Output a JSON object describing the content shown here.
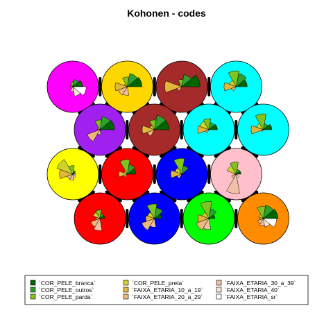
{
  "chart_data": {
    "type": "som-codes-segments",
    "title": "Kohonen - codes",
    "grid": {
      "xdim": 4,
      "ydim": 4,
      "topology": "hexagonal"
    },
    "variables": [
      {
        "name": "`COR_PELE_branca`",
        "color": "#006400"
      },
      {
        "name": "`COR_PELE_outros`",
        "color": "#2EA02E"
      },
      {
        "name": "`COR_PELE_parda`",
        "color": "#7FC41F"
      },
      {
        "name": "`COR_PELE_preta`",
        "color": "#CFD22B"
      },
      {
        "name": "`FAIXA_ETARIA_10_a_19`",
        "color": "#E2B63A"
      },
      {
        "name": "`FAIXA_ETARIA_20_a_29`",
        "color": "#EDB97A"
      },
      {
        "name": "`FAIXA_ETARIA_30_a_39`",
        "color": "#F1C1A6"
      },
      {
        "name": "`FAIXA_ETARIA_40`",
        "color": "#F7E2D7"
      },
      {
        "name": "`FAIXA_ETARIA_sr`",
        "color": "#FFFFFF"
      }
    ],
    "units": [
      {
        "row": 1,
        "col": 1,
        "bg": "#FF00FF",
        "codes": [
          0.4,
          0.3,
          0.2,
          0.1,
          0.1,
          0.1,
          0.2,
          0.4,
          0.55
        ]
      },
      {
        "row": 1,
        "col": 2,
        "bg": "#FFD700",
        "codes": [
          0.6,
          0.55,
          0.4,
          0.15,
          0.5,
          0.4,
          0.35,
          0.0,
          0.0
        ]
      },
      {
        "row": 1,
        "col": 3,
        "bg": "#A52A2A",
        "codes": [
          0.75,
          0.5,
          0.3,
          0.1,
          0.7,
          0.2,
          0.0,
          0.0,
          0.0
        ]
      },
      {
        "row": 1,
        "col": 4,
        "bg": "#00FFFF",
        "codes": [
          0.45,
          0.55,
          0.65,
          0.3,
          0.5,
          0.2,
          0.0,
          0.0,
          0.0
        ]
      },
      {
        "row": 2,
        "col": 1,
        "bg": "#A020F0",
        "codes": [
          0.6,
          0.55,
          0.4,
          0.1,
          0.1,
          0.55,
          0.2,
          0.0,
          0.0
        ]
      },
      {
        "row": 2,
        "col": 2,
        "bg": "#A52A2A",
        "codes": [
          0.6,
          0.6,
          0.4,
          0.2,
          0.5,
          0.3,
          0.0,
          0.0,
          0.0
        ]
      },
      {
        "row": 2,
        "col": 3,
        "bg": "#00FFFF",
        "codes": [
          0.35,
          0.3,
          0.45,
          0.4,
          0.45,
          0.15,
          0.0,
          0.0,
          0.0
        ]
      },
      {
        "row": 2,
        "col": 4,
        "bg": "#00FFFF",
        "codes": [
          0.35,
          0.25,
          0.65,
          0.3,
          0.5,
          0.1,
          0.0,
          0.0,
          0.0
        ]
      },
      {
        "row": 3,
        "col": 1,
        "bg": "#FFFF00",
        "codes": [
          0.1,
          0.15,
          0.35,
          0.7,
          0.55,
          0.25,
          0.25,
          0.15,
          0.1
        ]
      },
      {
        "row": 3,
        "col": 2,
        "bg": "#FF0000",
        "codes": [
          0.35,
          0.4,
          0.6,
          0.15,
          0.35,
          0.15,
          0.0,
          0.0,
          0.0
        ]
      },
      {
        "row": 3,
        "col": 3,
        "bg": "#0000FF",
        "codes": [
          0.1,
          0.35,
          0.65,
          0.3,
          0.45,
          0.2,
          0.0,
          0.0,
          0.0
        ]
      },
      {
        "row": 3,
        "col": 4,
        "bg": "#FFC0CB",
        "codes": [
          0.2,
          0.2,
          0.5,
          0.4,
          0.1,
          0.2,
          0.8,
          0.15,
          0.0
        ]
      },
      {
        "row": 4,
        "col": 1,
        "bg": "#FF0000",
        "codes": [
          0.2,
          0.2,
          0.35,
          0.3,
          0.15,
          0.4,
          0.5,
          0.0,
          0.0
        ]
      },
      {
        "row": 4,
        "col": 2,
        "bg": "#0000FF",
        "codes": [
          0.3,
          0.45,
          0.6,
          0.3,
          0.35,
          0.55,
          0.35,
          0.0,
          0.0
        ]
      },
      {
        "row": 4,
        "col": 3,
        "bg": "#00FF00",
        "codes": [
          0.25,
          0.4,
          0.7,
          0.3,
          0.45,
          0.55,
          0.45,
          0.0,
          0.0
        ]
      },
      {
        "row": 4,
        "col": 4,
        "bg": "#FF8C00",
        "codes": [
          0.6,
          0.55,
          0.5,
          0.2,
          0.15,
          0.25,
          0.3,
          0.35,
          0.55
        ]
      }
    ],
    "legend_position": "bottom"
  }
}
